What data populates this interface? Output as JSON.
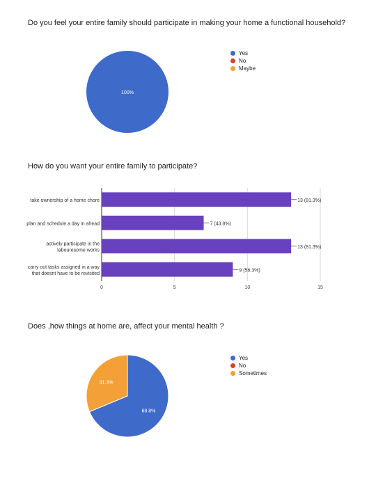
{
  "questions": {
    "q1": "Do you feel your entire family should participate in making your home a functional household?",
    "q2": "How do you want your entire family to participate?",
    "q3": "Does ,how things at home are, affect your mental health ?"
  },
  "chart_data": [
    {
      "type": "pie",
      "title": "Do you feel your entire family should participate in making your home a functional household?",
      "categories": [
        "Yes",
        "No",
        "Maybe"
      ],
      "values": [
        100,
        0,
        0
      ],
      "data_labels": [
        "100%",
        "",
        ""
      ],
      "colors": [
        "#3e6ac9",
        "#d9412c",
        "#f2a037"
      ],
      "legend": "right"
    },
    {
      "type": "bar",
      "orientation": "horizontal",
      "title": "How do you want your entire family to participate?",
      "categories": [
        "take ownership of a home chore",
        "plan and schedule a day in ahead",
        "actively participate in the labouresome works",
        "carry out tasks assigned in a way that doesnt have to be revisited"
      ],
      "values": [
        13,
        7,
        13,
        9
      ],
      "data_labels": [
        "13 (81.3%)",
        "7 (43.8%)",
        "13 (81.3%)",
        "9 (56.3%)"
      ],
      "xlim": [
        0,
        15
      ],
      "xticks": [
        "0",
        "5",
        "10",
        "15"
      ],
      "color": "#6841bf",
      "grid": true
    },
    {
      "type": "pie",
      "title": "Does ,how things at home are, affect your mental health ?",
      "categories": [
        "Yes",
        "No",
        "Sometimes"
      ],
      "values": [
        68.8,
        0,
        31.3
      ],
      "data_labels": [
        "68.8%",
        "",
        "31.3%"
      ],
      "colors": [
        "#3e6ac9",
        "#d9412c",
        "#f2a037"
      ],
      "legend": "right"
    }
  ]
}
